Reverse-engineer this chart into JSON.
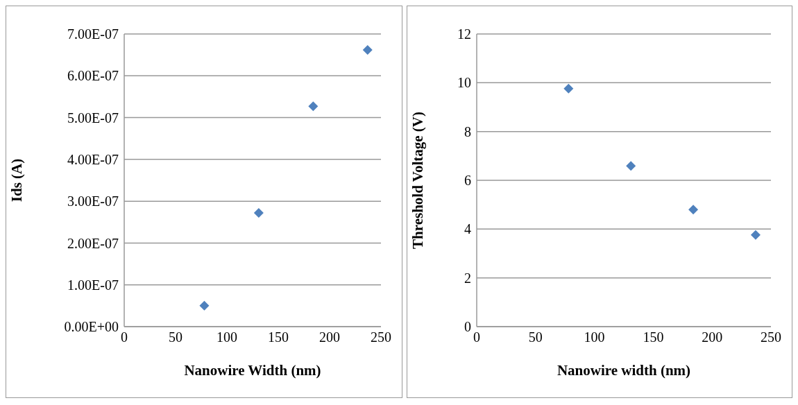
{
  "chart_data": [
    {
      "type": "scatter",
      "xlabel": "Nanowire Width (nm)",
      "ylabel": "Ids (A)",
      "x": [
        78,
        131,
        184,
        237
      ],
      "series": [
        {
          "color": "#4f81bd",
          "values": [
            5e-08,
            2.72e-07,
            5.27e-07,
            6.62e-07
          ]
        }
      ],
      "xlim": [
        0,
        250
      ],
      "xticks": [
        0,
        50,
        100,
        150,
        200,
        250
      ],
      "ylim": [
        0,
        7e-07
      ],
      "yticks": [
        {
          "value": 0,
          "label": "0.00E+00"
        },
        {
          "value": 1e-07,
          "label": "1.00E-07"
        },
        {
          "value": 2e-07,
          "label": "2.00E-07"
        },
        {
          "value": 3e-07,
          "label": "3.00E-07"
        },
        {
          "value": 4e-07,
          "label": "4.00E-07"
        },
        {
          "value": 5e-07,
          "label": "5.00E-07"
        },
        {
          "value": 6e-07,
          "label": "6.00E-07"
        },
        {
          "value": 7e-07,
          "label": "7.00E-07"
        }
      ],
      "grid": "y",
      "marker": "diamond",
      "legend": false
    },
    {
      "type": "scatter",
      "xlabel": "Nanowire width (nm)",
      "ylabel": "Threshold Voltage (V)",
      "x": [
        78,
        131,
        184,
        237
      ],
      "series": [
        {
          "color": "#4f81bd",
          "values": [
            9.76,
            6.59,
            4.8,
            3.76
          ]
        }
      ],
      "xlim": [
        0,
        250
      ],
      "xticks": [
        0,
        50,
        100,
        150,
        200,
        250
      ],
      "ylim": [
        0,
        12
      ],
      "yticks": [
        0,
        2,
        4,
        6,
        8,
        10,
        12
      ],
      "grid": "y",
      "marker": "diamond",
      "legend": false
    }
  ]
}
